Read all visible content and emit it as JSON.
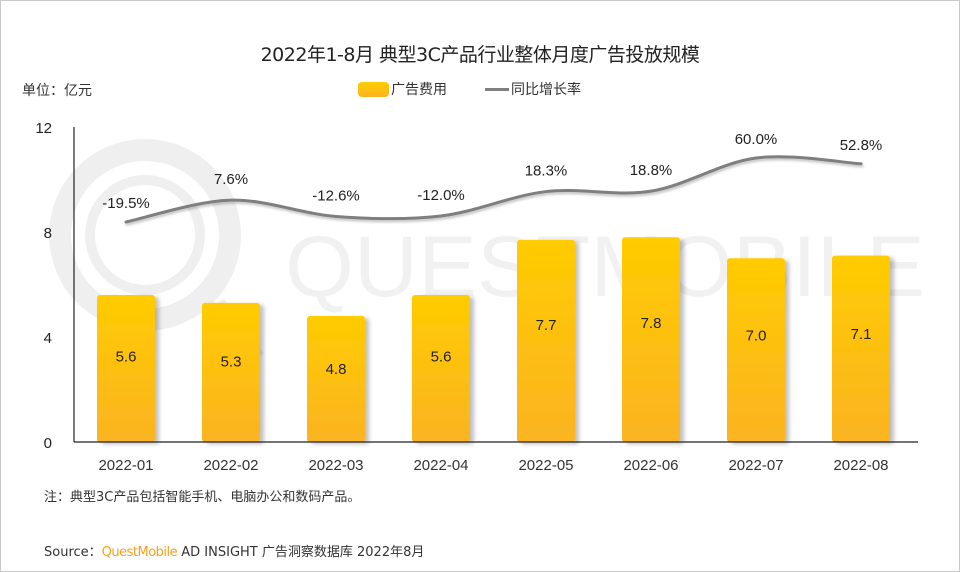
{
  "chart_data": {
    "type": "bar",
    "title": "2022年1-8月 典型3C产品行业整体月度广告投放规模",
    "unit_label": "单位：亿元",
    "categories": [
      "2022-01",
      "2022-02",
      "2022-03",
      "2022-04",
      "2022-05",
      "2022-06",
      "2022-07",
      "2022-08"
    ],
    "ylim": [
      0,
      12
    ],
    "yticks": [
      "0",
      "4",
      "8",
      "12"
    ],
    "ytick_values": [
      0,
      4,
      8,
      12
    ],
    "legend_position": "top-center",
    "series": [
      {
        "name": "广告费用",
        "type": "bar",
        "values": [
          5.6,
          5.3,
          4.8,
          5.6,
          7.7,
          7.8,
          7.0,
          7.1
        ],
        "labels": [
          "5.6",
          "5.3",
          "4.8",
          "5.6",
          "7.7",
          "7.8",
          "7.0",
          "7.1"
        ],
        "color": "#ffc000"
      },
      {
        "name": "同比增长率",
        "type": "line",
        "axis": "secondary-hidden",
        "values": [
          -19.5,
          7.6,
          -12.6,
          -12.0,
          18.3,
          18.8,
          60.0,
          52.8
        ],
        "labels": [
          "-19.5%",
          "7.6%",
          "-12.6%",
          "-12.0%",
          "18.3%",
          "18.8%",
          "60.0%",
          "52.8%"
        ],
        "color": "#7f7f7f"
      }
    ]
  },
  "note": "注：典型3C产品包括智能手机、电脑办公和数码产品。",
  "source": {
    "prefix": "Source：",
    "brand": "QuestMobile",
    "rest": " AD INSIGHT 广告洞察数据库 2022年8月"
  },
  "watermark": "QUESTMOBILE",
  "colors": {
    "bar_top": "#ffcc00",
    "bar_bottom": "#fbb322",
    "line": "#7f7f7f",
    "brand": "#f7a11a"
  }
}
